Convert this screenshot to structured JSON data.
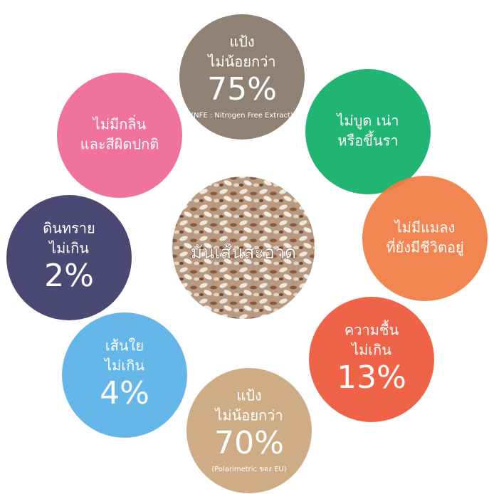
{
  "center": {
    "label": "มันเส้นสะอาด"
  },
  "items": [
    {
      "color": "#857667",
      "title": [
        "แป้ง",
        "ไม่น้อยกว่า"
      ],
      "value": "75%",
      "note": "(NFE : Nitrogen Free Extract)"
    },
    {
      "color": "#0fae66",
      "title": [
        "ไม่บูด เน่า",
        "หรือขึ้นรา"
      ]
    },
    {
      "color": "#f07c43",
      "title": [
        "ไม่มีแมลง",
        "ที่ยังมีชีวิตอยู่"
      ]
    },
    {
      "color": "#ee573a",
      "title": [
        "ความชื้น",
        "ไม่เกิน"
      ],
      "value": "13%"
    },
    {
      "color": "#c9a57c",
      "title": [
        "แป้ง",
        "ไม่น้อยกว่า"
      ],
      "value": "70%",
      "note": "(Polarimetric ของ EU)"
    },
    {
      "color": "#57b1e6",
      "title": [
        "เส้นใย",
        "ไม่เกิน"
      ],
      "value": "4%"
    },
    {
      "color": "#3d3868",
      "title": [
        "ดินทราย",
        "ไม่เกิน"
      ],
      "value": "2%"
    },
    {
      "color": "#ee6795",
      "title": [
        "ไม่มีกลิ่น",
        "และสีผิดปกติ"
      ]
    }
  ]
}
